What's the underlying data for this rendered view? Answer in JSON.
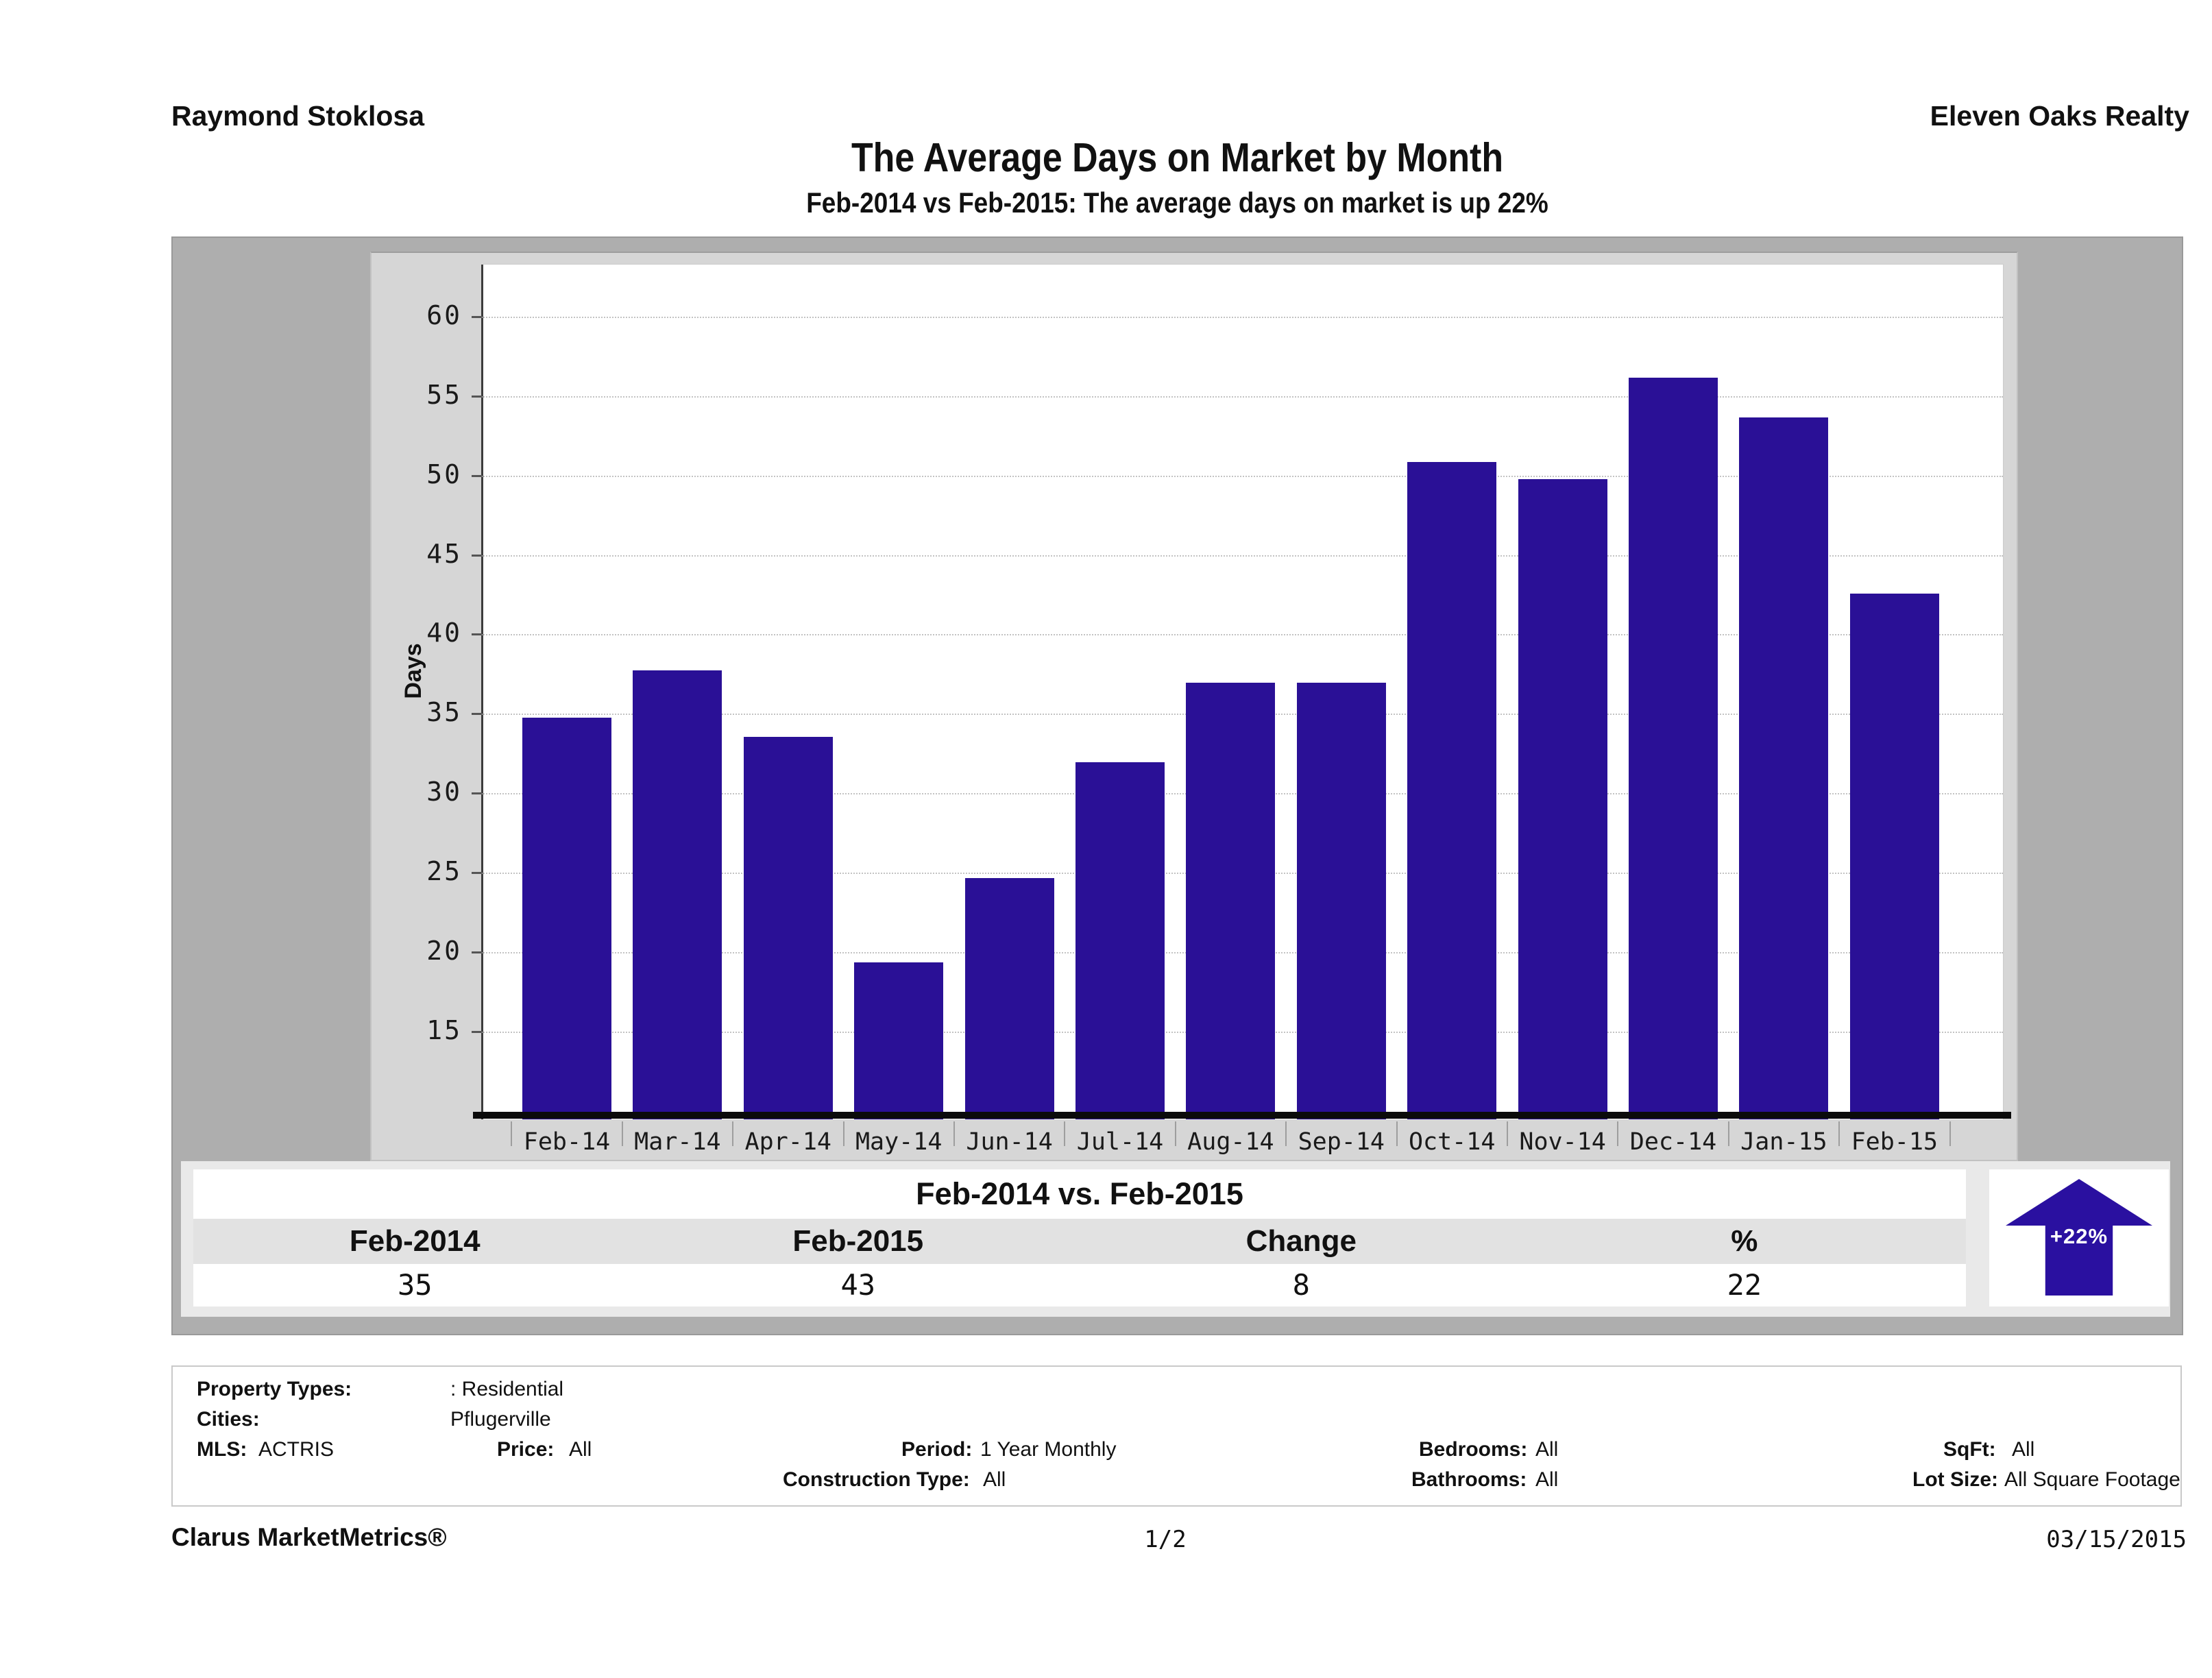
{
  "header": {
    "agent": "Raymond Stoklosa",
    "company": "Eleven Oaks Realty"
  },
  "title": "The Average Days on Market by Month",
  "subtitle": "Feb-2014 vs Feb-2015: The average days on market is up 22%",
  "chart_data": {
    "type": "bar",
    "title": "The Average Days on Market by Month",
    "categories": [
      "Feb-14",
      "Mar-14",
      "Apr-14",
      "May-14",
      "Jun-14",
      "Jul-14",
      "Aug-14",
      "Sep-14",
      "Oct-14",
      "Nov-14",
      "Dec-14",
      "Jan-15",
      "Feb-15"
    ],
    "values": [
      34.8,
      37.8,
      33.6,
      19.4,
      24.7,
      32.0,
      37.0,
      37.0,
      50.9,
      49.8,
      56.2,
      53.7,
      42.6
    ],
    "xlabel": "",
    "ylabel": "Days",
    "yticks": [
      15,
      20,
      25,
      30,
      35,
      40,
      45,
      50,
      55,
      60
    ],
    "ylim": [
      9.5,
      63.3
    ],
    "grid": "horizontal-dotted",
    "legend": "none",
    "bar_color": "#2a1096"
  },
  "comparison": {
    "title": "Feb-2014 vs. Feb-2015",
    "columns": [
      "Feb-2014",
      "Feb-2015",
      "Change",
      "%"
    ],
    "values": [
      "35",
      "43",
      "8",
      "22"
    ],
    "badge": "+22%",
    "badge_color": "#2a10a0"
  },
  "details": {
    "property_types_label": "Property Types:",
    "property_types_value": ": Residential",
    "cities_label": "Cities:",
    "cities_value": "Pflugerville",
    "mls_label": "MLS:",
    "mls_value": "ACTRIS",
    "price_label": "Price:",
    "price_value": "All",
    "period_label": "Period:",
    "period_value": "1 Year Monthly",
    "construction_label": "Construction Type:",
    "construction_value": "All",
    "bedrooms_label": "Bedrooms:",
    "bedrooms_value": "All",
    "bathrooms_label": "Bathrooms:",
    "bathrooms_value": "All",
    "sqft_label": "SqFt:",
    "sqft_value": "All",
    "lotsize_label": "Lot Size:",
    "lotsize_value": "All Square Footage"
  },
  "footer": {
    "brand": "Clarus MarketMetrics®",
    "page": "1/2",
    "date": "03/15/2015"
  }
}
